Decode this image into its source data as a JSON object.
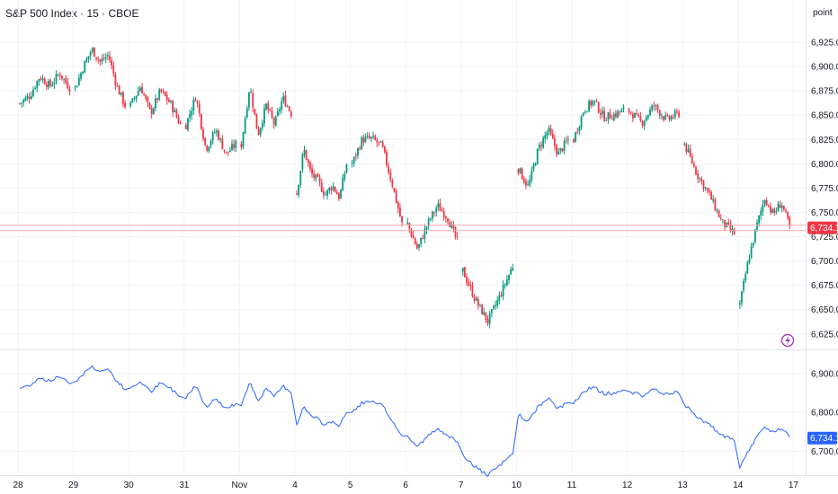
{
  "header": {
    "title": "S&P 500 Index · 15 · CBOE",
    "unit": "point"
  },
  "colors": {
    "up": "#089981",
    "down": "#f23645",
    "line": "#2962ff",
    "grid": "#f0f3fa",
    "price_label_main": "#f23645",
    "price_label_lower": "#2962ff",
    "lightning": "#9c27b0"
  },
  "icons": [
    "lightning-icon"
  ],
  "chart_data": [
    {
      "type": "candlestick",
      "title": "",
      "ylim": [
        6610,
        6950
      ],
      "y_ticks": [
        "6,925.00",
        "6,900.00",
        "6,875.00",
        "6,850.00",
        "6,825.00",
        "6,800.00",
        "6,775.00",
        "6,750.00",
        "6,725.00",
        "6,700.00",
        "6,675.00",
        "6,650.00",
        "6,625.00"
      ],
      "y_tick_values": [
        6925,
        6900,
        6875,
        6850,
        6825,
        6800,
        6775,
        6750,
        6725,
        6700,
        6675,
        6650,
        6625
      ],
      "last_price": 6734.11,
      "last_price_label": "6,734.11",
      "x_ticks": [
        "28",
        "29",
        "30",
        "31",
        "Nov",
        "4",
        "5",
        "6",
        "7",
        "10",
        "11",
        "12",
        "13",
        "14",
        "17"
      ],
      "x_tick_index": [
        0,
        1,
        2,
        3,
        4,
        5,
        6,
        7,
        8,
        9,
        10,
        11,
        12,
        13,
        14
      ],
      "segments": [
        {
          "day": "28",
          "path": [
            6862,
            6870,
            6890,
            6880,
            6893,
            6878
          ]
        },
        {
          "day": "29",
          "path": [
            6878,
            6900,
            6918,
            6905,
            6912,
            6880,
            6860
          ]
        },
        {
          "day": "30",
          "path": [
            6860,
            6880,
            6852,
            6875,
            6862,
            6840
          ]
        },
        {
          "day": "31",
          "path": [
            6840,
            6870,
            6815,
            6835,
            6810,
            6820
          ]
        },
        {
          "day": "Nov",
          "path": [
            6820,
            6880,
            6830,
            6860,
            6840,
            6868,
            6852
          ]
        },
        {
          "day": "4",
          "path": [
            6770,
            6815,
            6790,
            6782,
            6768,
            6778,
            6765,
            6800
          ]
        },
        {
          "day": "5",
          "path": [
            6800,
            6825,
            6826,
            6818,
            6780,
            6738
          ]
        },
        {
          "day": "6",
          "path": [
            6738,
            6712,
            6738,
            6757,
            6745,
            6720
          ]
        },
        {
          "day": "7",
          "path": [
            6690,
            6660,
            6638,
            6665,
            6695
          ]
        },
        {
          "day": "10",
          "path": [
            6795,
            6776,
            6815,
            6835,
            6810,
            6825
          ]
        },
        {
          "day": "11",
          "path": [
            6825,
            6855,
            6865,
            6848,
            6850,
            6855
          ]
        },
        {
          "day": "12",
          "path": [
            6855,
            6842,
            6860,
            6845,
            6852
          ]
        },
        {
          "day": "13",
          "path": [
            6820,
            6790,
            6768,
            6740,
            6728
          ]
        },
        {
          "day": "14",
          "path": [
            6655,
            6700,
            6735,
            6765,
            6748,
            6760,
            6735
          ]
        }
      ]
    },
    {
      "type": "line",
      "title": "",
      "ylim": [
        6655,
        6955
      ],
      "y_ticks": [
        "6,900.00",
        "6,800.00",
        "6,700.00"
      ],
      "y_tick_values": [
        6900,
        6800,
        6700
      ],
      "last_price": 6734.11,
      "last_price_label": "6,734.11",
      "series": [
        {
          "values_from": "candlestick closes"
        }
      ]
    }
  ]
}
